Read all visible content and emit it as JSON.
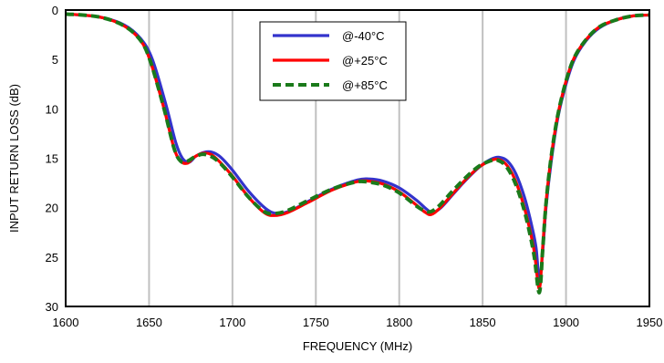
{
  "chart_data": {
    "type": "line",
    "title": "",
    "xlabel": "FREQUENCY  (MHz)",
    "ylabel": "INPUT RETURN LOSS (dB)",
    "xlim": [
      1600,
      1950
    ],
    "ylim": [
      0,
      30
    ],
    "y_inverted": true,
    "x_ticks": [
      1600,
      1650,
      1700,
      1750,
      1800,
      1850,
      1900,
      1950
    ],
    "y_ticks": [
      0,
      5,
      10,
      15,
      20,
      25,
      30
    ],
    "grid": "vertical",
    "legend_position": "top-center",
    "series": [
      {
        "name": "@-40°C",
        "color": "#3333cc",
        "style": "solid",
        "x": [
          1600,
          1620,
          1635,
          1645,
          1652,
          1660,
          1666,
          1670,
          1674,
          1678,
          1683,
          1688,
          1693,
          1700,
          1710,
          1720,
          1727,
          1735,
          1745,
          1760,
          1775,
          1782,
          1790,
          1800,
          1810,
          1816,
          1820,
          1825,
          1832,
          1840,
          1848,
          1855,
          1860,
          1865,
          1870,
          1875,
          1879,
          1882,
          1884,
          1886,
          1888,
          1891,
          1895,
          1900,
          1905,
          1912,
          1920,
          1930,
          1940,
          1950
        ],
        "values": [
          0.4,
          0.7,
          1.5,
          2.9,
          5.0,
          9.5,
          13.4,
          15.0,
          15.4,
          14.8,
          14.4,
          14.4,
          14.9,
          16.2,
          18.4,
          20.1,
          20.6,
          20.3,
          19.4,
          18.1,
          17.2,
          17.1,
          17.3,
          18.0,
          19.2,
          20.1,
          20.5,
          20.0,
          18.7,
          17.2,
          15.9,
          15.1,
          14.9,
          15.3,
          16.6,
          18.9,
          21.5,
          24.0,
          27.3,
          24.5,
          20.0,
          15.5,
          11.0,
          7.5,
          5.0,
          3.1,
          1.8,
          1.0,
          0.6,
          0.5
        ]
      },
      {
        "name": "@+25°C",
        "color": "#ff0000",
        "style": "solid",
        "x": [
          1600,
          1620,
          1635,
          1645,
          1651,
          1659,
          1665,
          1669,
          1673,
          1677,
          1682,
          1687,
          1692,
          1700,
          1710,
          1719,
          1725,
          1733,
          1745,
          1760,
          1774,
          1781,
          1790,
          1800,
          1810,
          1815,
          1819,
          1824,
          1831,
          1839,
          1847,
          1854,
          1859,
          1864,
          1869,
          1874,
          1878,
          1881,
          1884,
          1886,
          1888,
          1891,
          1895,
          1900,
          1905,
          1912,
          1920,
          1930,
          1940,
          1950
        ],
        "values": [
          0.4,
          0.7,
          1.6,
          3.1,
          5.3,
          10.0,
          14.0,
          15.3,
          15.5,
          14.9,
          14.5,
          14.6,
          15.3,
          16.8,
          19.0,
          20.5,
          20.8,
          20.5,
          19.5,
          18.2,
          17.4,
          17.3,
          17.6,
          18.4,
          19.7,
          20.4,
          20.7,
          20.1,
          18.8,
          17.3,
          16.0,
          15.3,
          15.1,
          15.6,
          17.0,
          19.4,
          22.0,
          24.5,
          28.2,
          24.0,
          19.5,
          15.0,
          10.7,
          7.2,
          4.8,
          3.0,
          1.7,
          1.0,
          0.6,
          0.5
        ]
      },
      {
        "name": "@+85°C",
        "color": "#1a7a1a",
        "style": "dashed",
        "x": [
          1600,
          1620,
          1635,
          1645,
          1651,
          1659,
          1665,
          1669,
          1673,
          1677,
          1682,
          1687,
          1692,
          1700,
          1710,
          1719,
          1725,
          1733,
          1745,
          1760,
          1774,
          1781,
          1790,
          1800,
          1810,
          1815,
          1819,
          1824,
          1831,
          1839,
          1847,
          1854,
          1859,
          1864,
          1869,
          1874,
          1878,
          1881,
          1884,
          1886,
          1888,
          1891,
          1895,
          1900,
          1905,
          1912,
          1920,
          1930,
          1940,
          1950
        ],
        "values": [
          0.4,
          0.7,
          1.6,
          3.1,
          5.3,
          10.0,
          14.0,
          15.3,
          15.3,
          14.9,
          14.6,
          14.8,
          15.4,
          16.9,
          19.0,
          20.4,
          20.6,
          20.3,
          19.3,
          18.1,
          17.4,
          17.4,
          17.7,
          18.5,
          19.8,
          20.3,
          20.4,
          19.8,
          18.5,
          17.1,
          15.9,
          15.3,
          15.2,
          15.8,
          17.3,
          19.7,
          22.4,
          25.0,
          28.6,
          24.3,
          19.6,
          15.0,
          10.7,
          7.2,
          4.8,
          3.0,
          1.7,
          1.0,
          0.6,
          0.5
        ]
      }
    ]
  }
}
